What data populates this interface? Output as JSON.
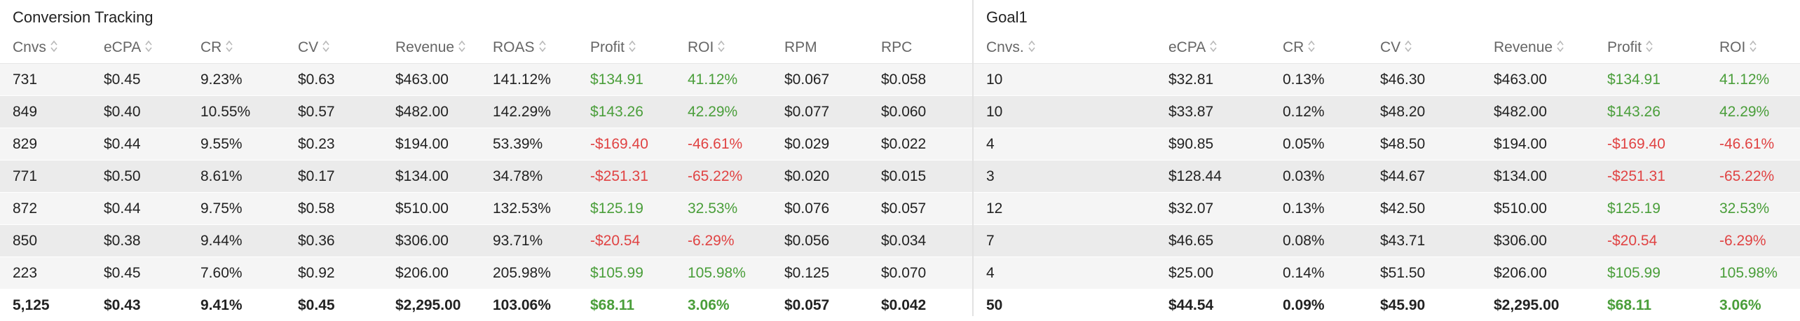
{
  "left_panel": {
    "title": "Conversion Tracking",
    "columns": [
      "Cnvs",
      "eCPA",
      "CR",
      "CV",
      "Revenue",
      "ROAS",
      "Profit",
      "ROI",
      "RPM",
      "RPC"
    ],
    "sortable": [
      true,
      true,
      true,
      true,
      true,
      true,
      true,
      true,
      false,
      false
    ],
    "rows": [
      [
        "731",
        "$0.45",
        "9.23%",
        "$0.63",
        "$463.00",
        "141.12%",
        "$134.91",
        "41.12%",
        "$0.067",
        "$0.058"
      ],
      [
        "849",
        "$0.40",
        "10.55%",
        "$0.57",
        "$482.00",
        "142.29%",
        "$143.26",
        "42.29%",
        "$0.077",
        "$0.060"
      ],
      [
        "829",
        "$0.44",
        "9.55%",
        "$0.23",
        "$194.00",
        "53.39%",
        "-$169.40",
        "-46.61%",
        "$0.029",
        "$0.022"
      ],
      [
        "771",
        "$0.50",
        "8.61%",
        "$0.17",
        "$134.00",
        "34.78%",
        "-$251.31",
        "-65.22%",
        "$0.020",
        "$0.015"
      ],
      [
        "872",
        "$0.44",
        "9.75%",
        "$0.58",
        "$510.00",
        "132.53%",
        "$125.19",
        "32.53%",
        "$0.076",
        "$0.057"
      ],
      [
        "850",
        "$0.38",
        "9.44%",
        "$0.36",
        "$306.00",
        "93.71%",
        "-$20.54",
        "-6.29%",
        "$0.056",
        "$0.034"
      ],
      [
        "223",
        "$0.45",
        "7.60%",
        "$0.92",
        "$206.00",
        "205.98%",
        "$105.99",
        "105.98%",
        "$0.125",
        "$0.070"
      ]
    ],
    "total": [
      "5,125",
      "$0.43",
      "9.41%",
      "$0.45",
      "$2,295.00",
      "103.06%",
      "$68.11",
      "3.06%",
      "$0.057",
      "$0.042"
    ]
  },
  "right_panel": {
    "title": "Goal1",
    "columns": [
      "Cnvs.",
      "eCPA",
      "CR",
      "CV",
      "Revenue",
      "Profit",
      "ROI"
    ],
    "sortable": [
      true,
      true,
      true,
      true,
      true,
      true,
      true
    ],
    "rows": [
      [
        "10",
        "$32.81",
        "0.13%",
        "$46.30",
        "$463.00",
        "$134.91",
        "41.12%"
      ],
      [
        "10",
        "$33.87",
        "0.12%",
        "$48.20",
        "$482.00",
        "$143.26",
        "42.29%"
      ],
      [
        "4",
        "$90.85",
        "0.05%",
        "$48.50",
        "$194.00",
        "-$169.40",
        "-46.61%"
      ],
      [
        "3",
        "$128.44",
        "0.03%",
        "$44.67",
        "$134.00",
        "-$251.31",
        "-65.22%"
      ],
      [
        "12",
        "$32.07",
        "0.13%",
        "$42.50",
        "$510.00",
        "$125.19",
        "32.53%"
      ],
      [
        "7",
        "$46.65",
        "0.08%",
        "$43.71",
        "$306.00",
        "-$20.54",
        "-6.29%"
      ],
      [
        "4",
        "$25.00",
        "0.14%",
        "$51.50",
        "$206.00",
        "$105.99",
        "105.98%"
      ]
    ],
    "total": [
      "50",
      "$44.54",
      "0.09%",
      "$45.90",
      "$2,295.00",
      "$68.11",
      "3.06%"
    ]
  },
  "colors": {
    "positive": "#4a9e3a",
    "negative": "#e04343",
    "row_odd": "#f5f5f5",
    "row_even": "#ebebeb"
  },
  "icons": {
    "sort": "sort-icon"
  }
}
